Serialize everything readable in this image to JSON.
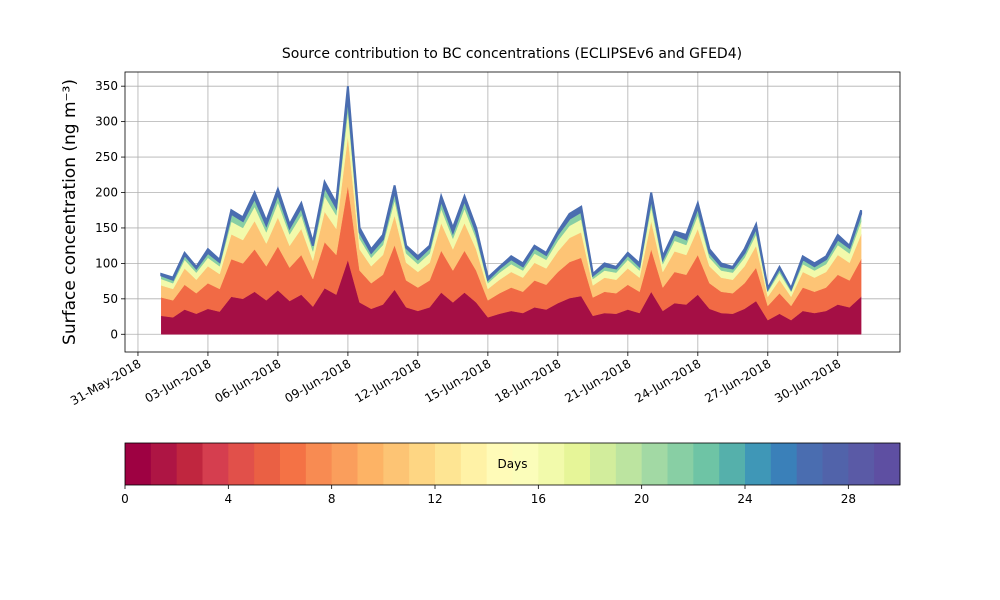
{
  "chart_data": {
    "type": "area",
    "stacked": true,
    "title": "Source contribution to BC concentrations (ECLIPSEv6 and GFED4)",
    "ylabel": "Surface concentration (ng m⁻³)",
    "grid": true,
    "x": [
      "2018-06-01T00",
      "2018-06-01T12",
      "2018-06-02T00",
      "2018-06-02T12",
      "2018-06-03T00",
      "2018-06-03T12",
      "2018-06-04T00",
      "2018-06-04T12",
      "2018-06-05T00",
      "2018-06-05T12",
      "2018-06-06T00",
      "2018-06-06T12",
      "2018-06-07T00",
      "2018-06-07T12",
      "2018-06-08T00",
      "2018-06-08T12",
      "2018-06-09T00",
      "2018-06-09T12",
      "2018-06-10T00",
      "2018-06-10T12",
      "2018-06-11T00",
      "2018-06-11T12",
      "2018-06-12T00",
      "2018-06-12T12",
      "2018-06-13T00",
      "2018-06-13T12",
      "2018-06-14T00",
      "2018-06-14T12",
      "2018-06-15T00",
      "2018-06-15T12",
      "2018-06-16T00",
      "2018-06-16T12",
      "2018-06-17T00",
      "2018-06-17T12",
      "2018-06-18T00",
      "2018-06-18T12",
      "2018-06-19T00",
      "2018-06-19T12",
      "2018-06-20T00",
      "2018-06-20T12",
      "2018-06-21T00",
      "2018-06-21T12",
      "2018-06-22T00",
      "2018-06-22T12",
      "2018-06-23T00",
      "2018-06-23T12",
      "2018-06-24T00",
      "2018-06-24T12",
      "2018-06-25T00",
      "2018-06-25T12",
      "2018-06-26T00",
      "2018-06-26T12",
      "2018-06-27T00",
      "2018-06-27T12",
      "2018-06-28T00",
      "2018-06-28T12",
      "2018-06-29T00",
      "2018-06-29T12",
      "2018-06-30T00",
      "2018-06-30T12",
      "2018-07-01T00"
    ],
    "series": [
      {
        "color": "#a50f45",
        "values": [
          26,
          24,
          35,
          29,
          36,
          32,
          53,
          50,
          60,
          48,
          62,
          47,
          56,
          39,
          65,
          56,
          105,
          45,
          36,
          42,
          63,
          38,
          33,
          38,
          59,
          45,
          59,
          45,
          24,
          29,
          33,
          30,
          38,
          35,
          44,
          51,
          54,
          26,
          30,
          29,
          35,
          30,
          60,
          33,
          44,
          42,
          56,
          36,
          30,
          29,
          36,
          47,
          20,
          29,
          20,
          33,
          30,
          33,
          42,
          38,
          53
        ]
      },
      {
        "color": "#f16a45",
        "values": [
          26,
          24,
          35,
          29,
          36,
          32,
          53,
          50,
          60,
          48,
          62,
          47,
          56,
          39,
          65,
          56,
          105,
          45,
          36,
          42,
          63,
          38,
          33,
          38,
          59,
          45,
          59,
          45,
          24,
          29,
          33,
          30,
          38,
          35,
          44,
          51,
          54,
          26,
          30,
          29,
          35,
          30,
          60,
          33,
          44,
          42,
          56,
          36,
          30,
          29,
          36,
          47,
          20,
          29,
          20,
          33,
          30,
          33,
          42,
          38,
          53
        ]
      },
      {
        "color": "#fdc475",
        "values": [
          17,
          16,
          23,
          19,
          24,
          21,
          35,
          33,
          40,
          32,
          41,
          31,
          37,
          26,
          43,
          37,
          70,
          30,
          24,
          28,
          42,
          25,
          22,
          25,
          39,
          30,
          39,
          30,
          16,
          19,
          22,
          20,
          25,
          23,
          29,
          34,
          36,
          17,
          20,
          19,
          23,
          20,
          40,
          22,
          29,
          28,
          37,
          24,
          20,
          19,
          24,
          31,
          13,
          19,
          13,
          22,
          20,
          22,
          28,
          25,
          35
        ]
      },
      {
        "color": "#f2faab",
        "values": [
          9,
          8,
          12,
          10,
          12,
          11,
          18,
          17,
          20,
          16,
          21,
          16,
          19,
          13,
          22,
          19,
          35,
          15,
          12,
          14,
          21,
          13,
          11,
          13,
          20,
          15,
          20,
          15,
          8,
          10,
          11,
          10,
          13,
          12,
          15,
          17,
          18,
          9,
          10,
          10,
          12,
          10,
          20,
          11,
          15,
          14,
          19,
          12,
          10,
          10,
          12,
          16,
          7,
          10,
          7,
          11,
          10,
          11,
          14,
          13,
          18
        ]
      },
      {
        "color": "#88cfa4",
        "values": [
          5,
          5,
          7,
          6,
          7,
          6,
          11,
          10,
          12,
          10,
          12,
          9,
          11,
          8,
          13,
          11,
          21,
          9,
          7,
          8,
          13,
          8,
          7,
          8,
          12,
          9,
          12,
          9,
          5,
          6,
          7,
          6,
          8,
          7,
          9,
          10,
          11,
          5,
          6,
          6,
          7,
          6,
          12,
          7,
          9,
          8,
          11,
          7,
          6,
          6,
          7,
          9,
          4,
          6,
          4,
          7,
          6,
          7,
          8,
          8,
          11
        ]
      },
      {
        "color": "#4a6db0",
        "values": [
          2,
          3,
          3,
          2,
          5,
          3,
          5,
          5,
          8,
          6,
          7,
          5,
          6,
          5,
          7,
          6,
          14,
          6,
          5,
          6,
          8,
          3,
          4,
          3,
          6,
          6,
          6,
          6,
          3,
          2,
          4,
          4,
          3,
          3,
          4,
          7,
          7,
          2,
          4,
          2,
          3,
          4,
          8,
          4,
          4,
          6,
          6,
          5,
          4,
          2,
          5,
          5,
          1,
          2,
          1,
          4,
          4,
          4,
          6,
          3,
          5
        ]
      }
    ],
    "xlim": [
      "2018-05-30T10:40",
      "2018-07-02T16:00"
    ],
    "xticks": [
      {
        "value": "2018-05-31T00:00",
        "label": "31-May-2018"
      },
      {
        "value": "2018-06-03T00:00",
        "label": "03-Jun-2018"
      },
      {
        "value": "2018-06-06T00:00",
        "label": "06-Jun-2018"
      },
      {
        "value": "2018-06-09T00:00",
        "label": "09-Jun-2018"
      },
      {
        "value": "2018-06-12T00:00",
        "label": "12-Jun-2018"
      },
      {
        "value": "2018-06-15T00:00",
        "label": "15-Jun-2018"
      },
      {
        "value": "2018-06-18T00:00",
        "label": "18-Jun-2018"
      },
      {
        "value": "2018-06-21T00:00",
        "label": "21-Jun-2018"
      },
      {
        "value": "2018-06-24T00:00",
        "label": "24-Jun-2018"
      },
      {
        "value": "2018-06-27T00:00",
        "label": "27-Jun-2018"
      },
      {
        "value": "2018-06-30T00:00",
        "label": "30-Jun-2018"
      }
    ],
    "ylim": [
      -25,
      370
    ],
    "yticks": [
      0,
      50,
      100,
      150,
      200,
      250,
      300,
      350
    ],
    "colorbar": {
      "label": "Days",
      "lim": [
        0,
        30
      ],
      "ticks": [
        0,
        4,
        8,
        12,
        16,
        20,
        24,
        28
      ],
      "colors": [
        "#9e0142",
        "#ae1544",
        "#c0263f",
        "#d53e4f",
        "#e1504a",
        "#ea6044",
        "#f47245",
        "#f88b52",
        "#fa9e5c",
        "#fdb365",
        "#fdc474",
        "#fed683",
        "#fee593",
        "#fff2a6",
        "#fffbb8",
        "#fbfdba",
        "#f2faab",
        "#e6f598",
        "#d2ed9c",
        "#bce4a0",
        "#a2d9a4",
        "#88cfa4",
        "#6ec4a5",
        "#55b0ab",
        "#3f97b7",
        "#3a80b9",
        "#4a6db0",
        "#5163aa",
        "#5a5aa6",
        "#5e4fa2"
      ]
    }
  }
}
